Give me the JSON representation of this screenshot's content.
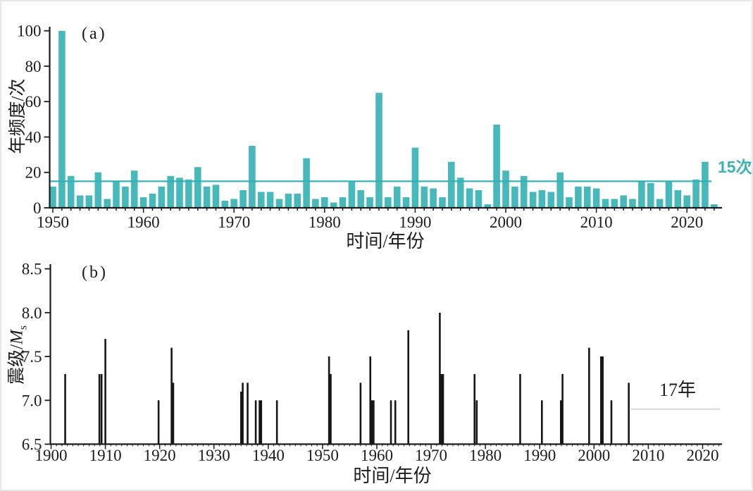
{
  "figure": {
    "background_color": "#ffffff",
    "frame_color": "#e7e7e7"
  },
  "chart_data": [
    {
      "id": "a",
      "type": "bar",
      "panel_label": "(a)",
      "xlabel": "时间/年份",
      "ylabel": "年频度/次",
      "x_tick_labels": [
        "1950",
        "1960",
        "1970",
        "1980",
        "1990",
        "2000",
        "2010",
        "2020"
      ],
      "y_tick_labels": [
        "0",
        "20",
        "40",
        "60",
        "80",
        "100"
      ],
      "xlim": [
        1949.6,
        2024
      ],
      "ylim": [
        0,
        100
      ],
      "grid": false,
      "legend": "none",
      "bar_color": "#48b9ba",
      "reference_line": {
        "value": 15,
        "label": "15次",
        "color": "#2fb0b2"
      },
      "start_year": 1950,
      "end_year": 2023,
      "values": [
        12,
        100,
        18,
        7,
        7,
        20,
        5,
        15,
        12,
        21,
        6,
        8,
        12,
        18,
        17,
        16,
        23,
        12,
        13,
        4,
        5,
        10,
        35,
        9,
        9,
        5,
        8,
        8,
        28,
        5,
        6,
        3,
        6,
        15,
        10,
        6,
        65,
        6,
        12,
        6,
        34,
        12,
        11,
        6,
        26,
        17,
        11,
        10,
        2,
        47,
        21,
        12,
        18,
        9,
        10,
        9,
        20,
        6,
        12,
        12,
        11,
        5,
        5,
        7,
        5,
        15,
        14,
        5,
        15,
        10,
        7,
        16,
        26,
        2
      ]
    },
    {
      "id": "b",
      "type": "stem",
      "panel_label": "(b)",
      "xlabel": "时间/年份",
      "ylabel": "震级/Ms",
      "ylabel_parts": {
        "prefix": "震级/",
        "variable": "M",
        "subscript": "s"
      },
      "x_tick_labels": [
        "1900",
        "1910",
        "1920",
        "1930",
        "1940",
        "1950",
        "1960",
        "1970",
        "1980",
        "1990",
        "2000",
        "2010",
        "2020"
      ],
      "y_tick_labels": [
        "6.5",
        "7.0",
        "7.5",
        "8.0",
        "8.5"
      ],
      "xlim": [
        1900,
        2023.7
      ],
      "ylim": [
        6.5,
        8.5
      ],
      "grid": false,
      "legend": "none",
      "stem_color": "#161616",
      "annotation": {
        "label": "17年",
        "line_value": 6.9,
        "line_start_year": 2006.7,
        "line_end_year": 2023.2,
        "line_color": "#d7d7d7"
      },
      "events": [
        {
          "year": 1902.6,
          "ms": 7.3
        },
        {
          "year": 1908.9,
          "ms": 7.3
        },
        {
          "year": 1909.3,
          "ms": 7.3
        },
        {
          "year": 1910.0,
          "ms": 7.7
        },
        {
          "year": 1919.8,
          "ms": 7.0
        },
        {
          "year": 1922.2,
          "ms": 7.6
        },
        {
          "year": 1922.5,
          "ms": 7.2
        },
        {
          "year": 1935.0,
          "ms": 7.1
        },
        {
          "year": 1935.3,
          "ms": 7.2
        },
        {
          "year": 1936.2,
          "ms": 7.2
        },
        {
          "year": 1937.7,
          "ms": 7.0
        },
        {
          "year": 1938.4,
          "ms": 7.0
        },
        {
          "year": 1938.7,
          "ms": 7.0
        },
        {
          "year": 1941.6,
          "ms": 7.0
        },
        {
          "year": 1951.2,
          "ms": 7.5
        },
        {
          "year": 1951.5,
          "ms": 7.3
        },
        {
          "year": 1957.0,
          "ms": 7.2
        },
        {
          "year": 1958.8,
          "ms": 7.5
        },
        {
          "year": 1959.1,
          "ms": 7.0
        },
        {
          "year": 1959.4,
          "ms": 7.0
        },
        {
          "year": 1962.6,
          "ms": 7.0
        },
        {
          "year": 1963.4,
          "ms": 7.0
        },
        {
          "year": 1965.8,
          "ms": 7.8
        },
        {
          "year": 1971.6,
          "ms": 8.0
        },
        {
          "year": 1971.9,
          "ms": 7.3
        },
        {
          "year": 1972.2,
          "ms": 7.3
        },
        {
          "year": 1978.0,
          "ms": 7.3
        },
        {
          "year": 1978.4,
          "ms": 7.0
        },
        {
          "year": 1986.4,
          "ms": 7.3
        },
        {
          "year": 1990.4,
          "ms": 7.0
        },
        {
          "year": 1993.9,
          "ms": 7.0
        },
        {
          "year": 1994.2,
          "ms": 7.3
        },
        {
          "year": 1999.1,
          "ms": 7.6
        },
        {
          "year": 2001.3,
          "ms": 7.5
        },
        {
          "year": 2001.6,
          "ms": 7.5
        },
        {
          "year": 2003.2,
          "ms": 7.0
        },
        {
          "year": 2006.4,
          "ms": 7.2
        }
      ]
    }
  ]
}
